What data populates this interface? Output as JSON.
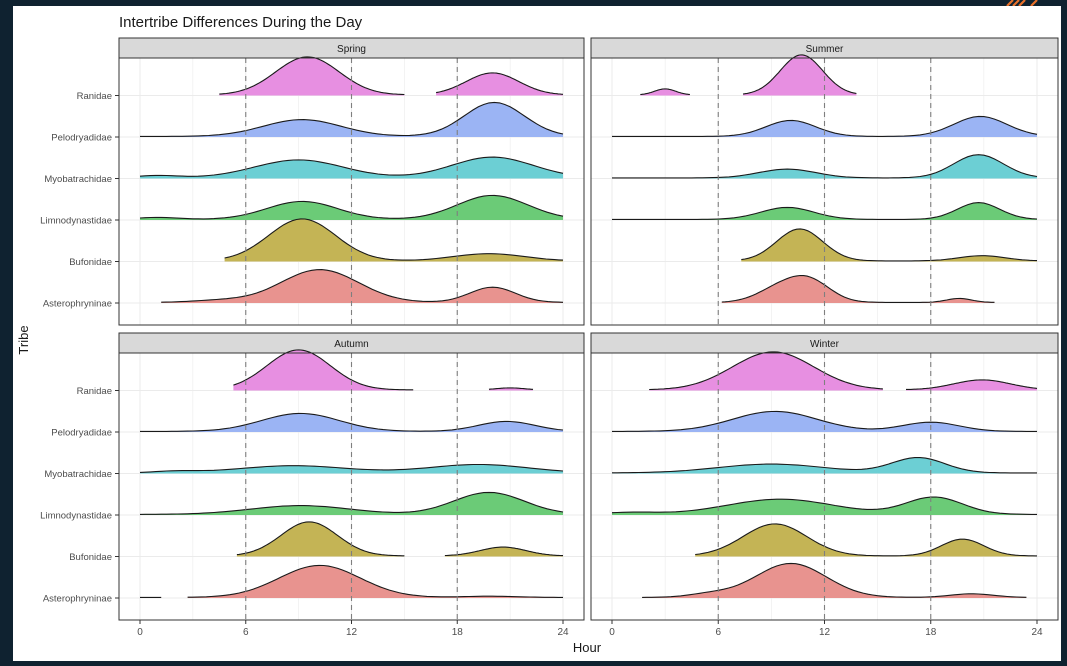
{
  "chart_data": {
    "type": "ridgeline",
    "title": "Intertribe Differences During the Day",
    "xlabel": "Hour",
    "ylabel": "Tribe",
    "xlim": [
      0,
      24
    ],
    "x_ticks": [
      0,
      6,
      12,
      18,
      24
    ],
    "reference_lines_hour": [
      6,
      12,
      18
    ],
    "grid": true,
    "legend": "none",
    "tribes": [
      "Asterophryninae",
      "Bufonidae",
      "Limnodynastidae",
      "Myobatrachidae",
      "Pelodryadidae",
      "Ranidae"
    ],
    "tribe_colors": {
      "Asterophryninae": "#E8938F",
      "Bufonidae": "#C4B455",
      "Limnodynastidae": "#6BCB77",
      "Myobatrachidae": "#6CCFD4",
      "Pelodryadidae": "#9BB4F4",
      "Ranidae": "#E78FE1"
    },
    "panels": [
      {
        "season": "Spring",
        "ridges": {
          "Ranidae": {
            "segments": [
              [
                4.5,
                15
              ],
              [
                16.8,
                24
              ]
            ],
            "peaks": [
              [
                9.5,
                0.95,
                1.8
              ],
              [
                20,
                0.55,
                1.5
              ]
            ]
          },
          "Pelodryadidae": {
            "segments": [
              [
                0,
                24
              ]
            ],
            "peaks": [
              [
                9.2,
                0.42,
                2.2
              ],
              [
                20.1,
                0.85,
                1.7
              ]
            ]
          },
          "Myobatrachidae": {
            "segments": [
              [
                0,
                24
              ]
            ],
            "peaks": [
              [
                9,
                0.45,
                2.5
              ],
              [
                20,
                0.52,
                2.3
              ],
              [
                1,
                0.06,
                1.2
              ]
            ]
          },
          "Limnodynastidae": {
            "segments": [
              [
                0,
                24
              ]
            ],
            "peaks": [
              [
                9.2,
                0.45,
                2
              ],
              [
                20,
                0.6,
                2
              ],
              [
                1,
                0.05,
                1.2
              ]
            ]
          },
          "Bufonidae": {
            "segments": [
              [
                4.8,
                24
              ]
            ],
            "peaks": [
              [
                9.2,
                1.05,
                1.9
              ],
              [
                19.8,
                0.18,
                2
              ]
            ]
          },
          "Asterophryninae": {
            "segments": [
              [
                1.2,
                24
              ]
            ],
            "peaks": [
              [
                10.2,
                0.82,
                2.2
              ],
              [
                20,
                0.38,
                1.3
              ],
              [
                4.5,
                0.05,
                1.5
              ]
            ]
          }
        }
      },
      {
        "season": "Summer",
        "ridges": {
          "Ranidae": {
            "segments": [
              [
                1.6,
                4.4
              ],
              [
                7.4,
                13.8
              ]
            ],
            "peaks": [
              [
                3,
                0.15,
                0.6
              ],
              [
                10.7,
                1,
                1.2
              ]
            ]
          },
          "Pelodryadidae": {
            "segments": [
              [
                0,
                24
              ]
            ],
            "peaks": [
              [
                10.1,
                0.4,
                1.4
              ],
              [
                20.8,
                0.5,
                1.5
              ]
            ]
          },
          "Myobatrachidae": {
            "segments": [
              [
                0,
                24
              ]
            ],
            "peaks": [
              [
                9.9,
                0.22,
                1.6
              ],
              [
                20.7,
                0.58,
                1.4
              ]
            ]
          },
          "Limnodynastidae": {
            "segments": [
              [
                0,
                24
              ]
            ],
            "peaks": [
              [
                9.9,
                0.3,
                1.5
              ],
              [
                20.7,
                0.42,
                1.2
              ]
            ]
          },
          "Bufonidae": {
            "segments": [
              [
                7.3,
                24
              ]
            ],
            "peaks": [
              [
                10.6,
                0.8,
                1.3
              ],
              [
                20.9,
                0.13,
                1.3
              ]
            ]
          },
          "Asterophryninae": {
            "segments": [
              [
                6.2,
                21.6
              ]
            ],
            "peaks": [
              [
                9.3,
                0.3,
                1.2
              ],
              [
                11.1,
                0.55,
                1.2
              ],
              [
                19.6,
                0.1,
                0.7
              ]
            ]
          }
        }
      },
      {
        "season": "Autumn",
        "ridges": {
          "Ranidae": {
            "segments": [
              [
                5.3,
                15.5
              ],
              [
                19.8,
                22.3
              ]
            ],
            "peaks": [
              [
                9,
                1,
                1.8
              ],
              [
                21,
                0.05,
                0.8
              ]
            ]
          },
          "Pelodryadidae": {
            "segments": [
              [
                0,
                24
              ]
            ],
            "peaks": [
              [
                9.1,
                0.45,
                2.2
              ],
              [
                20.8,
                0.25,
                1.6
              ]
            ]
          },
          "Myobatrachidae": {
            "segments": [
              [
                0,
                24
              ]
            ],
            "peaks": [
              [
                8.7,
                0.18,
                3
              ],
              [
                19.2,
                0.21,
                2.8
              ],
              [
                2,
                0.04,
                1.2
              ]
            ]
          },
          "Limnodynastidae": {
            "segments": [
              [
                0,
                24
              ]
            ],
            "peaks": [
              [
                9.1,
                0.22,
                2.8
              ],
              [
                19.8,
                0.55,
                2
              ]
            ]
          },
          "Bufonidae": {
            "segments": [
              [
                5.5,
                15
              ],
              [
                17.3,
                24
              ]
            ],
            "peaks": [
              [
                9.6,
                0.85,
                1.6
              ],
              [
                20.6,
                0.22,
                1.3
              ]
            ]
          },
          "Asterophryninae": {
            "segments": [
              [
                0,
                1.2
              ],
              [
                2.7,
                24
              ]
            ],
            "peaks": [
              [
                10.2,
                0.8,
                2.3
              ],
              [
                19.8,
                0.03,
                1.5
              ]
            ]
          }
        }
      },
      {
        "season": "Winter",
        "ridges": {
          "Ranidae": {
            "segments": [
              [
                2.1,
                15.3
              ],
              [
                16.6,
                24
              ]
            ],
            "peaks": [
              [
                9.1,
                0.95,
                2.3
              ],
              [
                20.9,
                0.25,
                1.6
              ]
            ]
          },
          "Pelodryadidae": {
            "segments": [
              [
                0,
                24
              ]
            ],
            "peaks": [
              [
                9.2,
                0.5,
                2.4
              ],
              [
                18,
                0.23,
                1.6
              ]
            ]
          },
          "Myobatrachidae": {
            "segments": [
              [
                0,
                24
              ]
            ],
            "peaks": [
              [
                9,
                0.22,
                3
              ],
              [
                17.3,
                0.38,
                1.5
              ]
            ]
          },
          "Limnodynastidae": {
            "segments": [
              [
                0,
                24
              ]
            ],
            "peaks": [
              [
                9.5,
                0.38,
                3
              ],
              [
                18.2,
                0.43,
                1.6
              ],
              [
                1,
                0.05,
                1.5
              ]
            ]
          },
          "Bufonidae": {
            "segments": [
              [
                4.7,
                24
              ]
            ],
            "peaks": [
              [
                9.2,
                0.8,
                1.8
              ],
              [
                19.8,
                0.42,
                1.2
              ]
            ]
          },
          "Asterophryninae": {
            "segments": [
              [
                1.7,
                23.4
              ]
            ],
            "peaks": [
              [
                10.1,
                0.85,
                2
              ],
              [
                5.5,
                0.08,
                1.2
              ],
              [
                20.3,
                0.09,
                1.2
              ]
            ]
          }
        }
      }
    ]
  }
}
